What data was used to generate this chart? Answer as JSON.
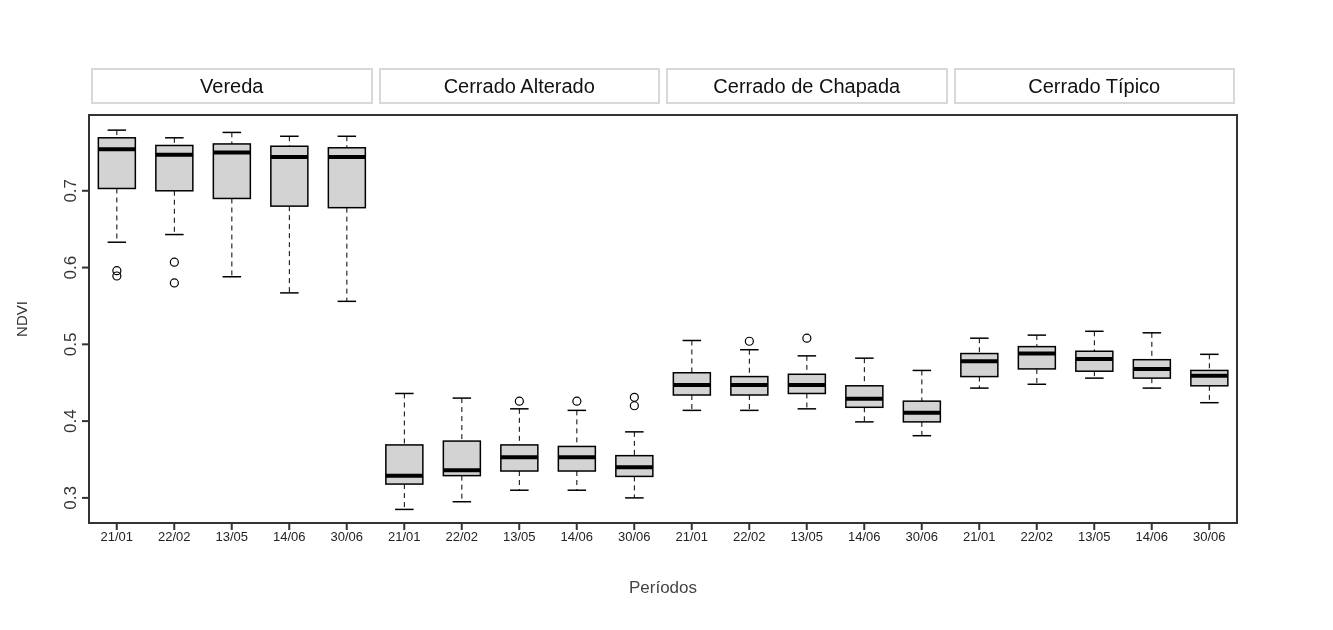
{
  "chart_data": {
    "type": "box",
    "xlabel": "Períodos",
    "ylabel": "NDVI",
    "color": "#d3d3d3",
    "annotations": [
      "Vereda",
      "Cerrado Alterado",
      "Cerrado de Chapada",
      "Cerrado Típico"
    ],
    "categories": [
      "21/01",
      "22/02",
      "13/05",
      "14/06",
      "30/06",
      "21/01",
      "22/02",
      "13/05",
      "14/06",
      "30/06",
      "21/01",
      "22/02",
      "13/05",
      "14/06",
      "30/06",
      "21/01",
      "22/02",
      "13/05",
      "14/06",
      "30/06"
    ],
    "boxes": [
      {
        "low": 0.633,
        "q1": 0.703,
        "median": 0.754,
        "q3": 0.769,
        "high": 0.779,
        "outliers": [
          0.596,
          0.589
        ]
      },
      {
        "low": 0.643,
        "q1": 0.7,
        "median": 0.747,
        "q3": 0.759,
        "high": 0.769,
        "outliers": [
          0.607,
          0.58
        ]
      },
      {
        "low": 0.588,
        "q1": 0.69,
        "median": 0.75,
        "q3": 0.761,
        "high": 0.776
      },
      {
        "low": 0.567,
        "q1": 0.68,
        "median": 0.744,
        "q3": 0.758,
        "high": 0.771
      },
      {
        "low": 0.556,
        "q1": 0.678,
        "median": 0.744,
        "q3": 0.756,
        "high": 0.771
      },
      {
        "low": 0.285,
        "q1": 0.318,
        "median": 0.329,
        "q3": 0.369,
        "high": 0.436
      },
      {
        "low": 0.295,
        "q1": 0.329,
        "median": 0.336,
        "q3": 0.374,
        "high": 0.43
      },
      {
        "low": 0.31,
        "q1": 0.335,
        "median": 0.353,
        "q3": 0.369,
        "high": 0.416,
        "outliers": [
          0.426
        ]
      },
      {
        "low": 0.31,
        "q1": 0.335,
        "median": 0.353,
        "q3": 0.367,
        "high": 0.414,
        "outliers": [
          0.426
        ]
      },
      {
        "low": 0.3,
        "q1": 0.328,
        "median": 0.34,
        "q3": 0.355,
        "high": 0.386,
        "outliers": [
          0.431,
          0.42
        ]
      },
      {
        "low": 0.414,
        "q1": 0.434,
        "median": 0.447,
        "q3": 0.463,
        "high": 0.505
      },
      {
        "low": 0.414,
        "q1": 0.434,
        "median": 0.447,
        "q3": 0.458,
        "high": 0.493,
        "outliers": [
          0.504
        ]
      },
      {
        "low": 0.416,
        "q1": 0.436,
        "median": 0.447,
        "q3": 0.461,
        "high": 0.485,
        "outliers": [
          0.508
        ]
      },
      {
        "low": 0.399,
        "q1": 0.418,
        "median": 0.429,
        "q3": 0.446,
        "high": 0.482
      },
      {
        "low": 0.381,
        "q1": 0.399,
        "median": 0.411,
        "q3": 0.426,
        "high": 0.466
      },
      {
        "low": 0.443,
        "q1": 0.458,
        "median": 0.478,
        "q3": 0.488,
        "high": 0.508
      },
      {
        "low": 0.448,
        "q1": 0.468,
        "median": 0.488,
        "q3": 0.497,
        "high": 0.512
      },
      {
        "low": 0.456,
        "q1": 0.465,
        "median": 0.481,
        "q3": 0.491,
        "high": 0.517
      },
      {
        "low": 0.443,
        "q1": 0.456,
        "median": 0.468,
        "q3": 0.48,
        "high": 0.515
      },
      {
        "low": 0.424,
        "q1": 0.446,
        "median": 0.459,
        "q3": 0.466,
        "high": 0.487
      }
    ],
    "ylim": [
      0.266,
      0.8
    ],
    "yticks": [
      0.3,
      0.4,
      0.5,
      0.6,
      0.7
    ]
  }
}
